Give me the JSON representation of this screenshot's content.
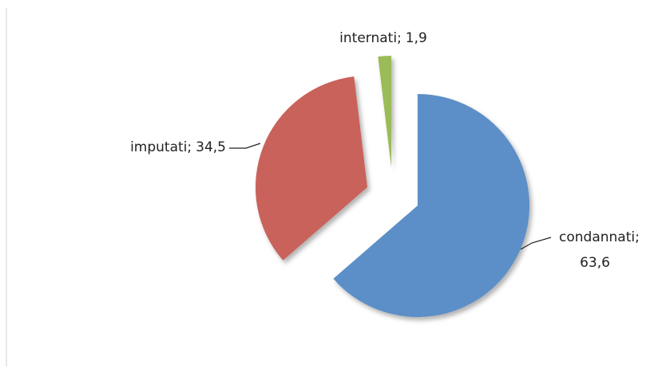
{
  "chart_data": {
    "type": "pie",
    "categories": [
      "condannati",
      "imputati",
      "internati"
    ],
    "label_separator": ";",
    "values": [
      63.6,
      34.5,
      1.9
    ],
    "value_labels": [
      "63,6",
      "34,5",
      "1,9"
    ],
    "series_colors": [
      "#5b8fc7",
      "#c9625a",
      "#9bbb59"
    ]
  }
}
